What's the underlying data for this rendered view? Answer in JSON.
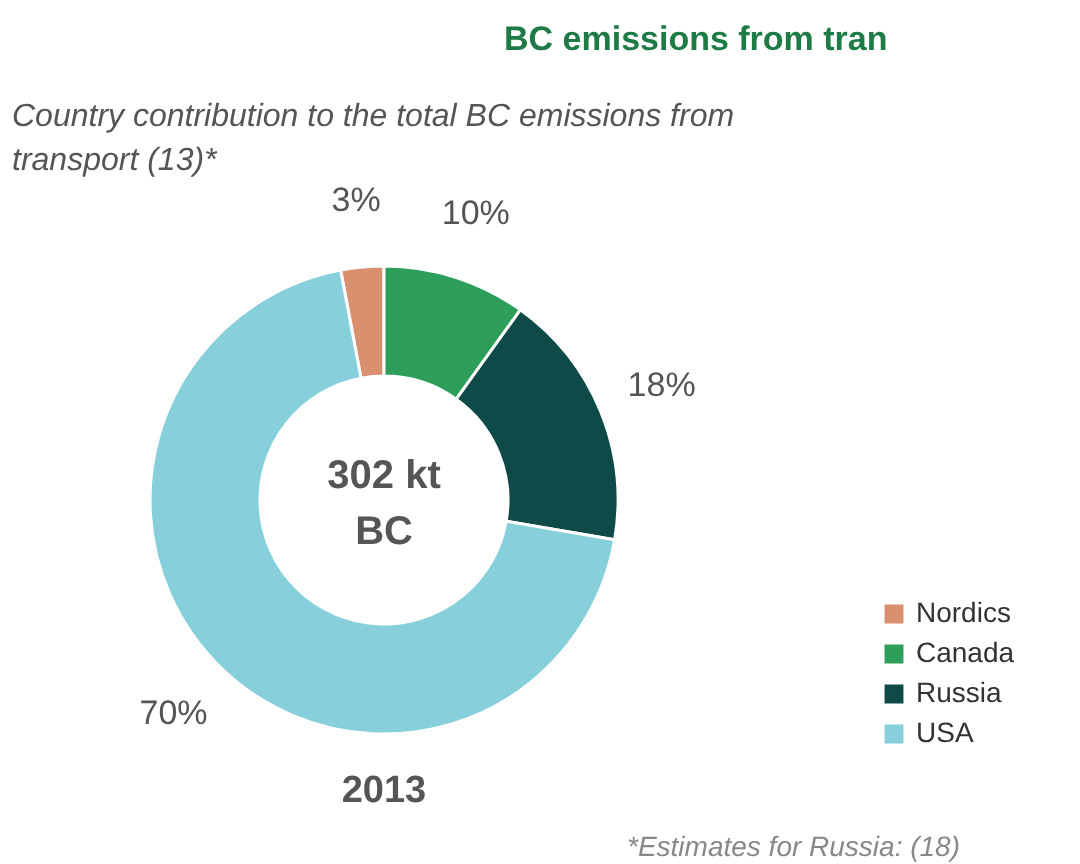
{
  "chart_data": {
    "type": "donut",
    "title": "BC emissions from tran",
    "subtitle": "Country contribution to the total BC emissions from transport (13)*",
    "categories": [
      "Nordics",
      "Canada",
      "Russia",
      "USA"
    ],
    "values": [
      3,
      10,
      18,
      70
    ],
    "colors": [
      "#d9906f",
      "#2e9e5b",
      "#0e4a47",
      "#88cfdc"
    ],
    "value_labels": [
      "3%",
      "10%",
      "18%",
      "70%"
    ],
    "legend": "right",
    "annotations": [
      "302 kt",
      "BC",
      "2013",
      "*Estimates for Russia: (18)"
    ]
  }
}
